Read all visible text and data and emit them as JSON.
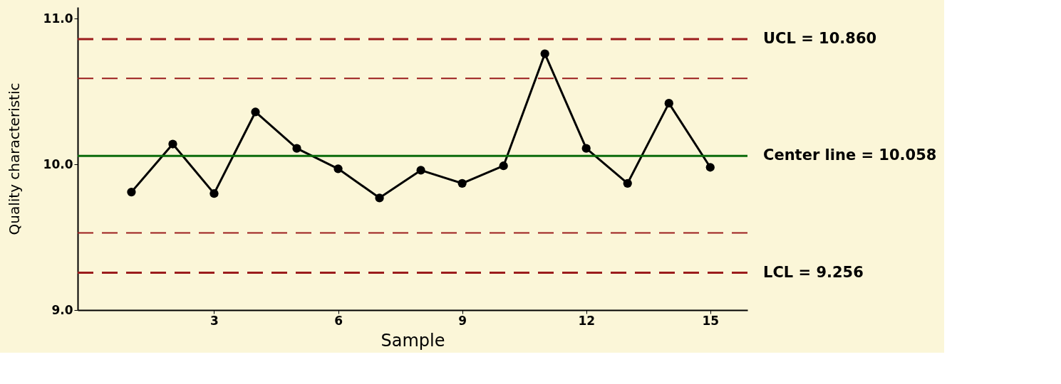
{
  "chart_data": {
    "type": "line",
    "xlabel": "Sample",
    "ylabel": "Quality characteristic",
    "x": [
      1,
      2,
      3,
      4,
      5,
      6,
      7,
      8,
      9,
      10,
      11,
      12,
      13,
      14,
      15
    ],
    "series": [
      {
        "color": "#000000",
        "values": [
          9.81,
          10.14,
          9.8,
          10.36,
          10.11,
          9.97,
          9.77,
          9.96,
          9.87,
          9.99,
          10.76,
          10.11,
          9.87,
          10.42,
          9.98
        ]
      }
    ],
    "marker": "circle",
    "line_style": "solid",
    "grid": false,
    "xlim": [
      -0.3,
      15.9
    ],
    "xticks": [
      3,
      6,
      9,
      12,
      15
    ],
    "ylim": [
      9.0,
      11.08
    ],
    "yticks": [
      {
        "value": 9,
        "label": "9.0"
      },
      {
        "value": 10,
        "label": "10.0"
      },
      {
        "value": 11,
        "label": "11.0"
      }
    ],
    "ref_lines": [
      {
        "axis": "y",
        "value": 10.86,
        "label": "UCL = 10.860",
        "color": "#9b1c1c",
        "line_style": "dashed"
      },
      {
        "axis": "y",
        "value": 10.59,
        "label": null,
        "color": "#9b1c1c",
        "line_style": "dashed"
      },
      {
        "axis": "y",
        "value": 10.058,
        "label": "Center line = 10.058",
        "color": "#0a6b0a",
        "line_style": "solid"
      },
      {
        "axis": "y",
        "value": 9.53,
        "label": null,
        "color": "#9b1c1c",
        "line_style": "dashed"
      },
      {
        "axis": "y",
        "value": 9.256,
        "label": "LCL = 9.256",
        "color": "#9b1c1c",
        "line_style": "dashed"
      }
    ]
  }
}
